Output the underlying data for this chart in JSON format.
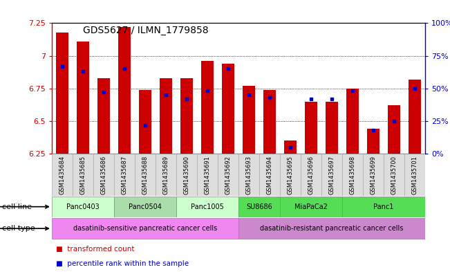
{
  "title": "GDS5627 / ILMN_1779858",
  "samples": [
    "GSM1435684",
    "GSM1435685",
    "GSM1435686",
    "GSM1435687",
    "GSM1435688",
    "GSM1435689",
    "GSM1435690",
    "GSM1435691",
    "GSM1435692",
    "GSM1435693",
    "GSM1435694",
    "GSM1435695",
    "GSM1435696",
    "GSM1435697",
    "GSM1435698",
    "GSM1435699",
    "GSM1435700",
    "GSM1435701"
  ],
  "transformed_count": [
    7.18,
    7.11,
    6.83,
    7.22,
    6.74,
    6.83,
    6.83,
    6.96,
    6.94,
    6.77,
    6.74,
    6.35,
    6.65,
    6.65,
    6.75,
    6.44,
    6.62,
    6.82
  ],
  "percentile_rank": [
    67,
    63,
    47,
    65,
    22,
    45,
    42,
    48,
    65,
    45,
    43,
    5,
    42,
    42,
    48,
    18,
    25,
    50
  ],
  "ylim": [
    6.25,
    7.25
  ],
  "yticks": [
    6.25,
    6.5,
    6.75,
    7.0,
    7.25
  ],
  "ytick_labels": [
    "6.25",
    "6.5",
    "6.75",
    "7",
    "7.25"
  ],
  "y2ticks": [
    0,
    25,
    50,
    75,
    100
  ],
  "y2tick_labels": [
    "0%",
    "25%",
    "50%",
    "75%",
    "100%"
  ],
  "bar_color": "#cc0000",
  "marker_color": "#0000cc",
  "baseline": 6.25,
  "cell_lines": [
    {
      "name": "Panc0403",
      "start": 0,
      "end": 3,
      "color": "#ccffcc"
    },
    {
      "name": "Panc0504",
      "start": 3,
      "end": 6,
      "color": "#aaddaa"
    },
    {
      "name": "Panc1005",
      "start": 6,
      "end": 9,
      "color": "#ccffcc"
    },
    {
      "name": "SU8686",
      "start": 9,
      "end": 11,
      "color": "#55dd55"
    },
    {
      "name": "MiaPaCa2",
      "start": 11,
      "end": 14,
      "color": "#55dd55"
    },
    {
      "name": "Panc1",
      "start": 14,
      "end": 18,
      "color": "#55dd55"
    }
  ],
  "cell_types": [
    {
      "name": "dasatinib-sensitive pancreatic cancer cells",
      "start": 0,
      "end": 9,
      "color": "#ee88ee"
    },
    {
      "name": "dasatinib-resistant pancreatic cancer cells",
      "start": 9,
      "end": 18,
      "color": "#cc88cc"
    }
  ],
  "legend_items": [
    {
      "label": "transformed count",
      "color": "#cc0000"
    },
    {
      "label": "percentile rank within the sample",
      "color": "#0000cc"
    }
  ],
  "left_axis_color": "#cc0000",
  "right_axis_color": "#0000cc",
  "grid_yticks": [
    6.5,
    6.75,
    7.0
  ],
  "sample_box_color": "#dddddd",
  "bar_width": 0.6
}
